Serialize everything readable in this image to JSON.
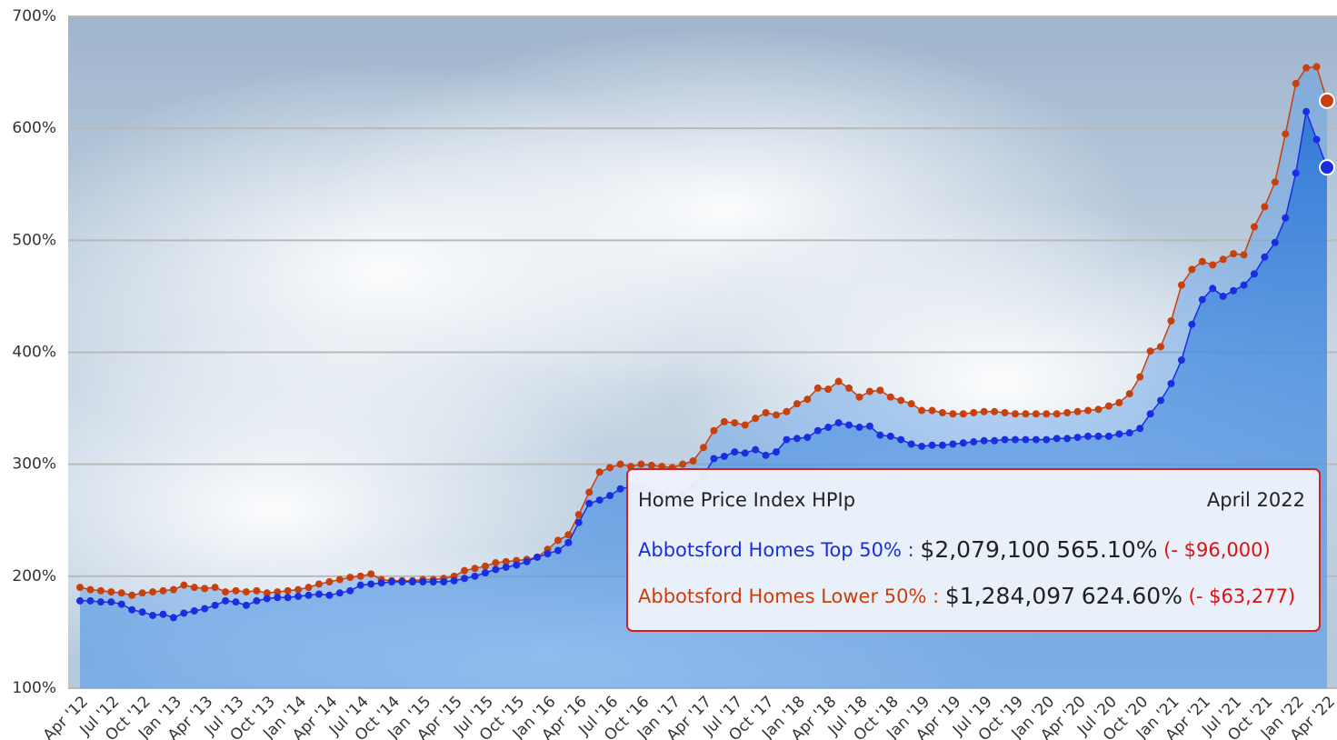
{
  "chart_data": {
    "type": "line",
    "categories": [
      "Apr '12",
      null,
      null,
      "Jul '12",
      null,
      null,
      "Oct '12",
      null,
      null,
      "Jan '13",
      null,
      null,
      "Apr '13",
      null,
      null,
      "Jul '13",
      null,
      null,
      "Oct '13",
      null,
      null,
      "Jan '14",
      null,
      null,
      "Apr '14",
      null,
      null,
      "Jul '14",
      null,
      null,
      "Oct '14",
      null,
      null,
      "Jan '15",
      null,
      null,
      "Apr '15",
      null,
      null,
      "Jul '15",
      null,
      null,
      "Oct '15",
      null,
      null,
      "Jan '16",
      null,
      null,
      "Apr '16",
      null,
      null,
      "Jul '16",
      null,
      null,
      "Oct '16",
      null,
      null,
      "Jan '17",
      null,
      null,
      "Apr '17",
      null,
      null,
      "Jul '17",
      null,
      null,
      "Oct '17",
      null,
      null,
      "Jan '18",
      null,
      null,
      "Apr '18",
      null,
      null,
      "Jul '18",
      null,
      null,
      "Oct '18",
      null,
      null,
      "Jan '19",
      null,
      null,
      "Apr '19",
      null,
      null,
      "Jul '19",
      null,
      null,
      "Oct '19",
      null,
      null,
      "Jan '20",
      null,
      null,
      "Apr '20",
      null,
      null,
      "Jul '20",
      null,
      null,
      "Oct '20",
      null,
      null,
      "Jan '21",
      null,
      null,
      "Apr '21",
      null,
      null,
      "Jul '21",
      null,
      null,
      "Oct '21",
      null,
      null,
      "Jan '22",
      null,
      null,
      "Apr '22"
    ],
    "series": [
      {
        "name": "Abbotsford Homes Lower 50%",
        "color": "#c8400c",
        "values": [
          190,
          188,
          187,
          186,
          185,
          183,
          185,
          186,
          187,
          188,
          192,
          190,
          189,
          190,
          186,
          187,
          186,
          187,
          185,
          186,
          187,
          188,
          190,
          193,
          195,
          197,
          199,
          200,
          202,
          197,
          196,
          196,
          196,
          197,
          197,
          198,
          200,
          205,
          207,
          209,
          212,
          213,
          214,
          215,
          217,
          224,
          232,
          237,
          255,
          275,
          293,
          297,
          300,
          298,
          300,
          299,
          298,
          297,
          300,
          303,
          315,
          330,
          338,
          337,
          335,
          341,
          346,
          344,
          347,
          354,
          358,
          368,
          367,
          374,
          368,
          360,
          365,
          366,
          360,
          357,
          354,
          348,
          348,
          346,
          345,
          345,
          346,
          347,
          347,
          346,
          345,
          345,
          345,
          345,
          345,
          346,
          347,
          348,
          349,
          352,
          355,
          363,
          378,
          401,
          405,
          428,
          460,
          474,
          481,
          478,
          483,
          488,
          487,
          512,
          530,
          552,
          595,
          640,
          654,
          655,
          624.6
        ]
      },
      {
        "name": "Abbotsford Homes Top 50%",
        "color": "#1a2ee0",
        "values": [
          178,
          178,
          177,
          177,
          175,
          170,
          168,
          165,
          166,
          163,
          167,
          169,
          171,
          174,
          178,
          177,
          174,
          178,
          180,
          181,
          181,
          182,
          183,
          184,
          183,
          185,
          187,
          192,
          193,
          194,
          195,
          195,
          195,
          195,
          195,
          195,
          196,
          198,
          200,
          203,
          206,
          208,
          210,
          213,
          217,
          220,
          223,
          230,
          248,
          265,
          268,
          272,
          278,
          280,
          278,
          275,
          272,
          270,
          272,
          280,
          290,
          305,
          307,
          311,
          310,
          313,
          308,
          311,
          322,
          323,
          324,
          330,
          333,
          337,
          335,
          333,
          334,
          326,
          325,
          322,
          318,
          316,
          317,
          317,
          318,
          319,
          320,
          321,
          321,
          322,
          322,
          322,
          322,
          322,
          323,
          323,
          324,
          325,
          325,
          325,
          327,
          328,
          332,
          345,
          357,
          372,
          393,
          425,
          447,
          457,
          450,
          455,
          460,
          470,
          485,
          498,
          520,
          560,
          615,
          590,
          565.1
        ]
      }
    ],
    "ylim": [
      100,
      700
    ],
    "yticks": [
      {
        "value": 100,
        "label": "100%"
      },
      {
        "value": 200,
        "label": "200%"
      },
      {
        "value": 300,
        "label": "300%"
      },
      {
        "value": 400,
        "label": "400%"
      },
      {
        "value": 500,
        "label": "500%"
      },
      {
        "value": 600,
        "label": "600%"
      },
      {
        "value": 700,
        "label": "700%"
      }
    ],
    "grid": true,
    "tooltip": {
      "title": "Home Price Index HPIp",
      "date": "April 2022",
      "rows": [
        {
          "name": "Abbotsford Homes Top 50% :",
          "price": "$2,079,100",
          "index": "565.10%",
          "change": "(- $96,000)",
          "color": "#1a2ee0"
        },
        {
          "name": "Abbotsford Homes Lower 50% :",
          "price": "$1,284,097",
          "index": "624.60%",
          "change": "(- $63,277)",
          "color": "#c8400c"
        }
      ]
    }
  }
}
